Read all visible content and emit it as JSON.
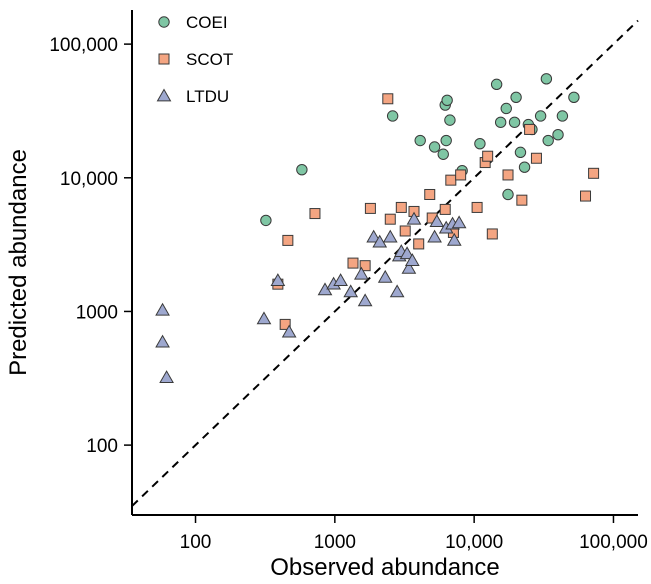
{
  "chart_data": {
    "type": "scatter",
    "title": "",
    "xlabel": "Observed abundance",
    "ylabel": "Predicted abundance",
    "xscale": "log",
    "yscale": "log",
    "xlim": [
      35,
      150000
    ],
    "ylim": [
      30,
      180000
    ],
    "x_ticks": [
      {
        "value": 100,
        "label": "100"
      },
      {
        "value": 1000,
        "label": "1000"
      },
      {
        "value": 10000,
        "label": "10,000"
      },
      {
        "value": 100000,
        "label": "100,000"
      }
    ],
    "y_ticks": [
      {
        "value": 100,
        "label": "100"
      },
      {
        "value": 1000,
        "label": "1000"
      },
      {
        "value": 10000,
        "label": "10,000"
      },
      {
        "value": 100000,
        "label": "100,000"
      }
    ],
    "grid": false,
    "reference_line": {
      "style": "dashed",
      "relation": "y = x",
      "color": "#000000"
    },
    "legend": {
      "placement": "top-left"
    },
    "series": [
      {
        "name": "COEI",
        "marker": "circle",
        "color": "#7fc6a4",
        "points": [
          [
            320,
            4800
          ],
          [
            580,
            11500
          ],
          [
            2600,
            29000
          ],
          [
            4100,
            19000
          ],
          [
            5200,
            17000
          ],
          [
            6000,
            15000
          ],
          [
            6200,
            35000
          ],
          [
            6400,
            38000
          ],
          [
            6300,
            19000
          ],
          [
            6700,
            27000
          ],
          [
            8200,
            11300
          ],
          [
            11000,
            18000
          ],
          [
            14500,
            50000
          ],
          [
            15500,
            26000
          ],
          [
            17000,
            33000
          ],
          [
            17500,
            7500
          ],
          [
            19500,
            26000
          ],
          [
            20000,
            40000
          ],
          [
            21500,
            15500
          ],
          [
            23000,
            12000
          ],
          [
            24500,
            25000
          ],
          [
            26000,
            23000
          ],
          [
            30000,
            29000
          ],
          [
            33000,
            55000
          ],
          [
            34000,
            19000
          ],
          [
            40000,
            21000
          ],
          [
            43000,
            29000
          ],
          [
            52000,
            40000
          ]
        ]
      },
      {
        "name": "SCOT",
        "marker": "square",
        "color": "#f4a582",
        "points": [
          [
            390,
            1600
          ],
          [
            440,
            800
          ],
          [
            460,
            3400
          ],
          [
            720,
            5400
          ],
          [
            1350,
            2300
          ],
          [
            1650,
            2200
          ],
          [
            1800,
            5900
          ],
          [
            2400,
            39000
          ],
          [
            2500,
            4900
          ],
          [
            3000,
            6000
          ],
          [
            3200,
            4000
          ],
          [
            3700,
            5600
          ],
          [
            4000,
            3200
          ],
          [
            4800,
            7500
          ],
          [
            5000,
            5000
          ],
          [
            6200,
            5800
          ],
          [
            6800,
            9600
          ],
          [
            7100,
            3900
          ],
          [
            8000,
            10500
          ],
          [
            10500,
            6000
          ],
          [
            12000,
            13000
          ],
          [
            12500,
            14500
          ],
          [
            13500,
            3800
          ],
          [
            17500,
            10500
          ],
          [
            22000,
            6800
          ],
          [
            25000,
            23000
          ],
          [
            28000,
            14000
          ],
          [
            63000,
            7300
          ],
          [
            72000,
            10800
          ]
        ]
      },
      {
        "name": "LTDU",
        "marker": "triangle",
        "color": "#9ea8cf",
        "points": [
          [
            58,
            1020
          ],
          [
            58,
            590
          ],
          [
            62,
            320
          ],
          [
            310,
            880
          ],
          [
            390,
            1700
          ],
          [
            470,
            700
          ],
          [
            850,
            1450
          ],
          [
            980,
            1600
          ],
          [
            1100,
            1700
          ],
          [
            1300,
            1400
          ],
          [
            1550,
            1900
          ],
          [
            1650,
            1200
          ],
          [
            1900,
            3600
          ],
          [
            2100,
            3300
          ],
          [
            2300,
            1800
          ],
          [
            2500,
            3600
          ],
          [
            2800,
            1400
          ],
          [
            2900,
            2600
          ],
          [
            3000,
            2800
          ],
          [
            3300,
            2700
          ],
          [
            3400,
            2100
          ],
          [
            3600,
            2400
          ],
          [
            3700,
            4900
          ],
          [
            5200,
            3600
          ],
          [
            5400,
            4700
          ],
          [
            6300,
            4200
          ],
          [
            7000,
            4500
          ],
          [
            7200,
            3400
          ],
          [
            7800,
            4600
          ]
        ]
      }
    ]
  }
}
